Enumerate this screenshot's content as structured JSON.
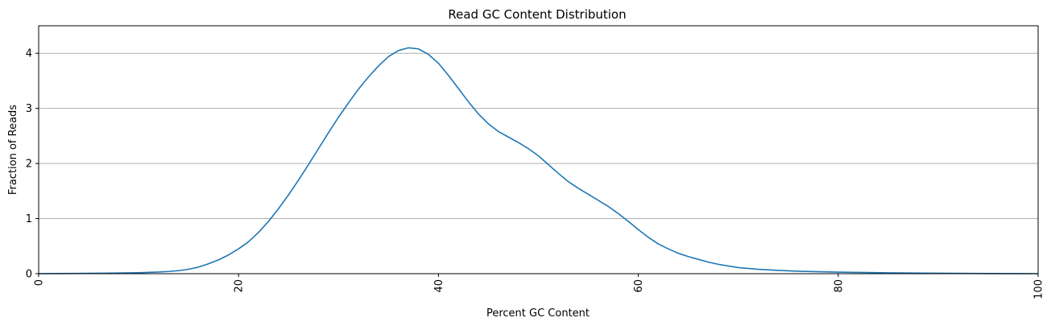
{
  "chart_data": {
    "type": "line",
    "title": "Read GC Content Distribution",
    "xlabel": "Percent GC Content",
    "ylabel": "Fraction of Reads",
    "xlim": [
      0,
      100
    ],
    "ylim": [
      0,
      4.5
    ],
    "xticks": [
      0,
      20,
      40,
      60,
      80,
      100
    ],
    "yticks": [
      0,
      1,
      2,
      3,
      4
    ],
    "grid": "y-major",
    "series_color": "#1f77b4",
    "x": [
      0,
      2,
      4,
      6,
      8,
      10,
      12,
      13,
      14,
      15,
      16,
      17,
      18,
      19,
      20,
      21,
      22,
      23,
      24,
      25,
      26,
      27,
      28,
      29,
      30,
      31,
      32,
      33,
      34,
      35,
      36,
      37,
      38,
      39,
      40,
      41,
      42,
      43,
      44,
      45,
      46,
      47,
      48,
      49,
      50,
      51,
      52,
      53,
      54,
      55,
      56,
      57,
      58,
      59,
      60,
      61,
      62,
      63,
      64,
      65,
      66,
      67,
      68,
      69,
      70,
      72,
      74,
      76,
      78,
      80,
      85,
      90,
      95,
      100
    ],
    "y": [
      0,
      0.002,
      0.005,
      0.008,
      0.012,
      0.018,
      0.03,
      0.04,
      0.055,
      0.08,
      0.12,
      0.18,
      0.25,
      0.34,
      0.45,
      0.58,
      0.75,
      0.95,
      1.18,
      1.43,
      1.7,
      1.98,
      2.27,
      2.56,
      2.84,
      3.1,
      3.35,
      3.57,
      3.77,
      3.94,
      4.05,
      4.1,
      4.08,
      3.98,
      3.82,
      3.6,
      3.36,
      3.12,
      2.9,
      2.72,
      2.58,
      2.48,
      2.38,
      2.27,
      2.14,
      1.98,
      1.82,
      1.67,
      1.55,
      1.44,
      1.33,
      1.22,
      1.09,
      0.95,
      0.8,
      0.66,
      0.54,
      0.45,
      0.37,
      0.31,
      0.26,
      0.21,
      0.17,
      0.14,
      0.11,
      0.08,
      0.06,
      0.045,
      0.035,
      0.028,
      0.016,
      0.008,
      0.003,
      0
    ]
  }
}
